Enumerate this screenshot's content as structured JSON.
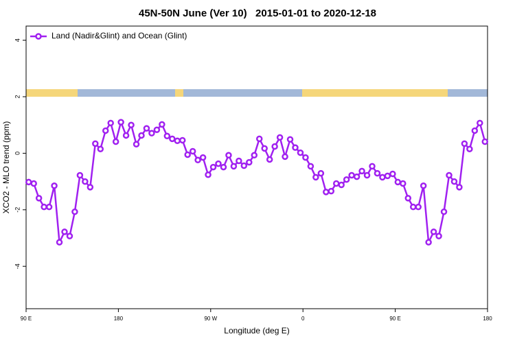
{
  "chart_data": {
    "type": "line",
    "title": "45N-50N June (Ver 10)   2015-01-01 to 2020-12-18",
    "x_label": "Longitude (deg E)",
    "y_label": "XCO2 - MLO trend (ppm)",
    "xlim": [
      90,
      540
    ],
    "ylim": [
      -5.5,
      4.5
    ],
    "xticks": [
      {
        "value": 90,
        "label": "90 E"
      },
      180,
      {
        "value": 270,
        "label": "90 W"
      },
      {
        "value": 360,
        "label": "0"
      },
      {
        "value": 450,
        "label": "90 E"
      },
      {
        "value": 540,
        "label": "180"
      }
    ],
    "yticks": [
      -4,
      -2,
      0,
      2,
      4
    ],
    "legend": "top-left",
    "x": [
      92.5,
      97.5,
      102.5,
      107.5,
      112.5,
      117.5,
      122.5,
      127.5,
      132.5,
      137.5,
      142.5,
      147.5,
      152.5,
      157.5,
      162.5,
      167.5,
      172.5,
      177.5,
      182.5,
      187.5,
      192.5,
      197.5,
      202.5,
      207.5,
      212.5,
      217.5,
      222.5,
      227.5,
      232.5,
      237.5,
      242.5,
      247.5,
      252.5,
      257.5,
      262.5,
      267.5,
      272.5,
      277.5,
      282.5,
      287.5,
      292.5,
      297.5,
      302.5,
      307.5,
      312.5,
      317.5,
      322.5,
      327.5,
      332.5,
      337.5,
      342.5,
      347.5,
      352.5,
      357.5,
      362.5,
      367.5,
      372.5,
      377.5,
      382.5,
      387.5,
      392.5,
      397.5,
      402.5,
      407.5,
      412.5,
      417.5,
      422.5,
      427.5,
      432.5,
      437.5,
      442.5,
      447.5,
      452.5,
      457.5,
      462.5,
      467.5,
      472.5,
      477.5,
      482.5,
      487.5,
      492.5,
      497.5,
      502.5,
      507.5,
      512.5,
      517.5,
      522.5,
      527.5,
      532.5,
      537.5
    ],
    "series": [
      {
        "name": "Land (Nadir&Glint) and Ocean (Glint)",
        "color": "#a020f0",
        "values": [
          -1.02,
          -1.07,
          -1.59,
          -1.9,
          -1.9,
          -1.15,
          -3.15,
          -2.78,
          -2.93,
          -2.07,
          -0.78,
          -1.0,
          -1.2,
          0.34,
          0.15,
          0.8,
          1.07,
          0.41,
          1.1,
          0.63,
          1.0,
          0.32,
          0.63,
          0.88,
          0.71,
          0.83,
          1.02,
          0.61,
          0.51,
          0.44,
          0.46,
          -0.05,
          0.07,
          -0.24,
          -0.15,
          -0.76,
          -0.49,
          -0.37,
          -0.49,
          -0.07,
          -0.46,
          -0.27,
          -0.44,
          -0.32,
          -0.07,
          0.51,
          0.17,
          -0.22,
          0.24,
          0.56,
          -0.12,
          0.49,
          0.2,
          0.02,
          -0.15,
          -0.46,
          -0.85,
          -0.71,
          -1.37,
          -1.34,
          -1.07,
          -1.12,
          -0.93,
          -0.78,
          -0.83,
          -0.63,
          -0.78,
          -0.46,
          -0.71,
          -0.85,
          -0.8,
          -0.73,
          -1.02,
          -1.07,
          -1.59,
          -1.9,
          -1.9,
          -1.15,
          -3.15,
          -2.78,
          -2.93,
          -2.07,
          -0.78,
          -1.0,
          -1.2,
          0.34,
          0.15,
          0.8,
          1.07,
          0.41
        ]
      }
    ]
  }
}
